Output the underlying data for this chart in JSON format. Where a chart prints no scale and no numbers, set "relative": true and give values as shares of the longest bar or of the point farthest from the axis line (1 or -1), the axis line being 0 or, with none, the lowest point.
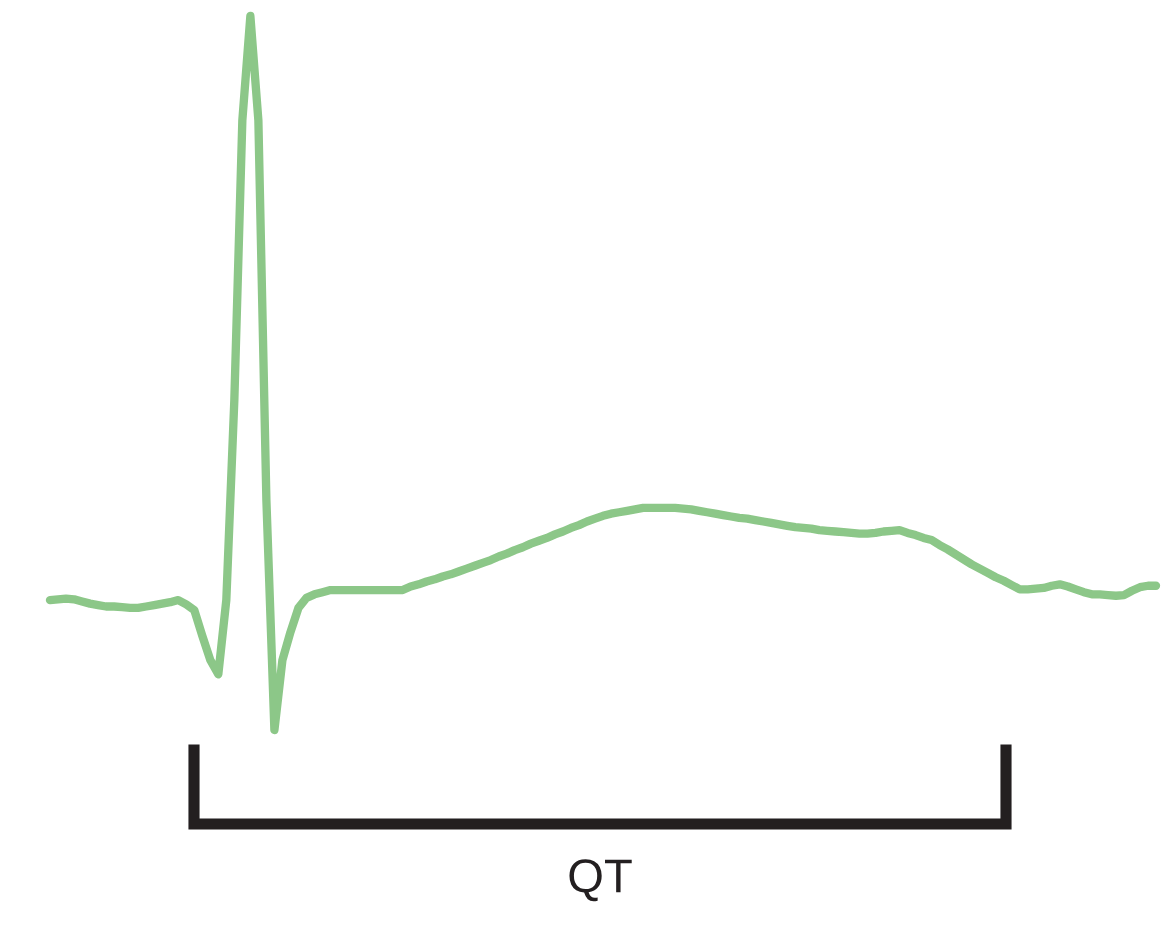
{
  "chart_data": {
    "type": "line",
    "relative": true,
    "categories": [
      null,
      null,
      null,
      null,
      null,
      null,
      null,
      null,
      null,
      null,
      null,
      null,
      null,
      null,
      null,
      null,
      null,
      null,
      null,
      null,
      null,
      null,
      null,
      null,
      null,
      null,
      null,
      null,
      null,
      null,
      null,
      null,
      null,
      null,
      null,
      null,
      null,
      null,
      null,
      null,
      null,
      null,
      null,
      null,
      null,
      null,
      null,
      null,
      null,
      null,
      null,
      null,
      null,
      null,
      null,
      null,
      null,
      null,
      null,
      null,
      null,
      null,
      null,
      null,
      null,
      null,
      null,
      null,
      null,
      null,
      null,
      null,
      null,
      null,
      null,
      null,
      null,
      null,
      null,
      null,
      null,
      null,
      null,
      null,
      null,
      null,
      null,
      null,
      null,
      null,
      null,
      null,
      null,
      null,
      null,
      null,
      null,
      null,
      null,
      null,
      null,
      null,
      null,
      null,
      null,
      null,
      null,
      null,
      null,
      null,
      null,
      null,
      null,
      null,
      null,
      null,
      null,
      null,
      null,
      null,
      null,
      null,
      null,
      null,
      null,
      null,
      null,
      null,
      null,
      null,
      null,
      null,
      null,
      null,
      null,
      null,
      null,
      null,
      null
    ],
    "series": [
      {
        "color": "#8cc788",
        "values": [
          0.182,
          0.183,
          0.184,
          0.183,
          0.18,
          0.177,
          0.175,
          0.173,
          0.173,
          0.172,
          0.171,
          0.171,
          0.173,
          0.175,
          0.177,
          0.179,
          0.182,
          0.176,
          0.168,
          0.132,
          0.098,
          0.078,
          0.182,
          0.462,
          0.854,
          1,
          0.854,
          0.322,
          0,
          0.098,
          0.137,
          0.171,
          0.185,
          0.19,
          0.193,
          0.196,
          0.196,
          0.196,
          0.196,
          0.196,
          0.196,
          0.196,
          0.196,
          0.196,
          0.196,
          0.201,
          0.204,
          0.208,
          0.211,
          0.215,
          0.218,
          0.222,
          0.226,
          0.23,
          0.234,
          0.238,
          0.243,
          0.247,
          0.252,
          0.256,
          0.261,
          0.265,
          0.269,
          0.274,
          0.278,
          0.283,
          0.287,
          0.292,
          0.296,
          0.3,
          0.303,
          0.305,
          0.307,
          0.309,
          0.311,
          0.311,
          0.311,
          0.311,
          0.311,
          0.31,
          0.309,
          0.307,
          0.305,
          0.303,
          0.301,
          0.299,
          0.297,
          0.296,
          0.294,
          0.292,
          0.29,
          0.288,
          0.286,
          0.284,
          0.283,
          0.282,
          0.28,
          0.279,
          0.278,
          0.277,
          0.276,
          0.275,
          0.275,
          0.276,
          0.278,
          0.279,
          0.28,
          0.276,
          0.273,
          0.269,
          0.266,
          0.259,
          0.253,
          0.246,
          0.239,
          0.232,
          0.226,
          0.22,
          0.214,
          0.209,
          0.203,
          0.197,
          0.197,
          0.198,
          0.199,
          0.202,
          0.204,
          0.201,
          0.197,
          0.193,
          0.19,
          0.19,
          0.189,
          0.188,
          0.189,
          0.195,
          0.2,
          0.202,
          0.202
        ]
      }
    ],
    "annotations": [
      "QT"
    ]
  }
}
